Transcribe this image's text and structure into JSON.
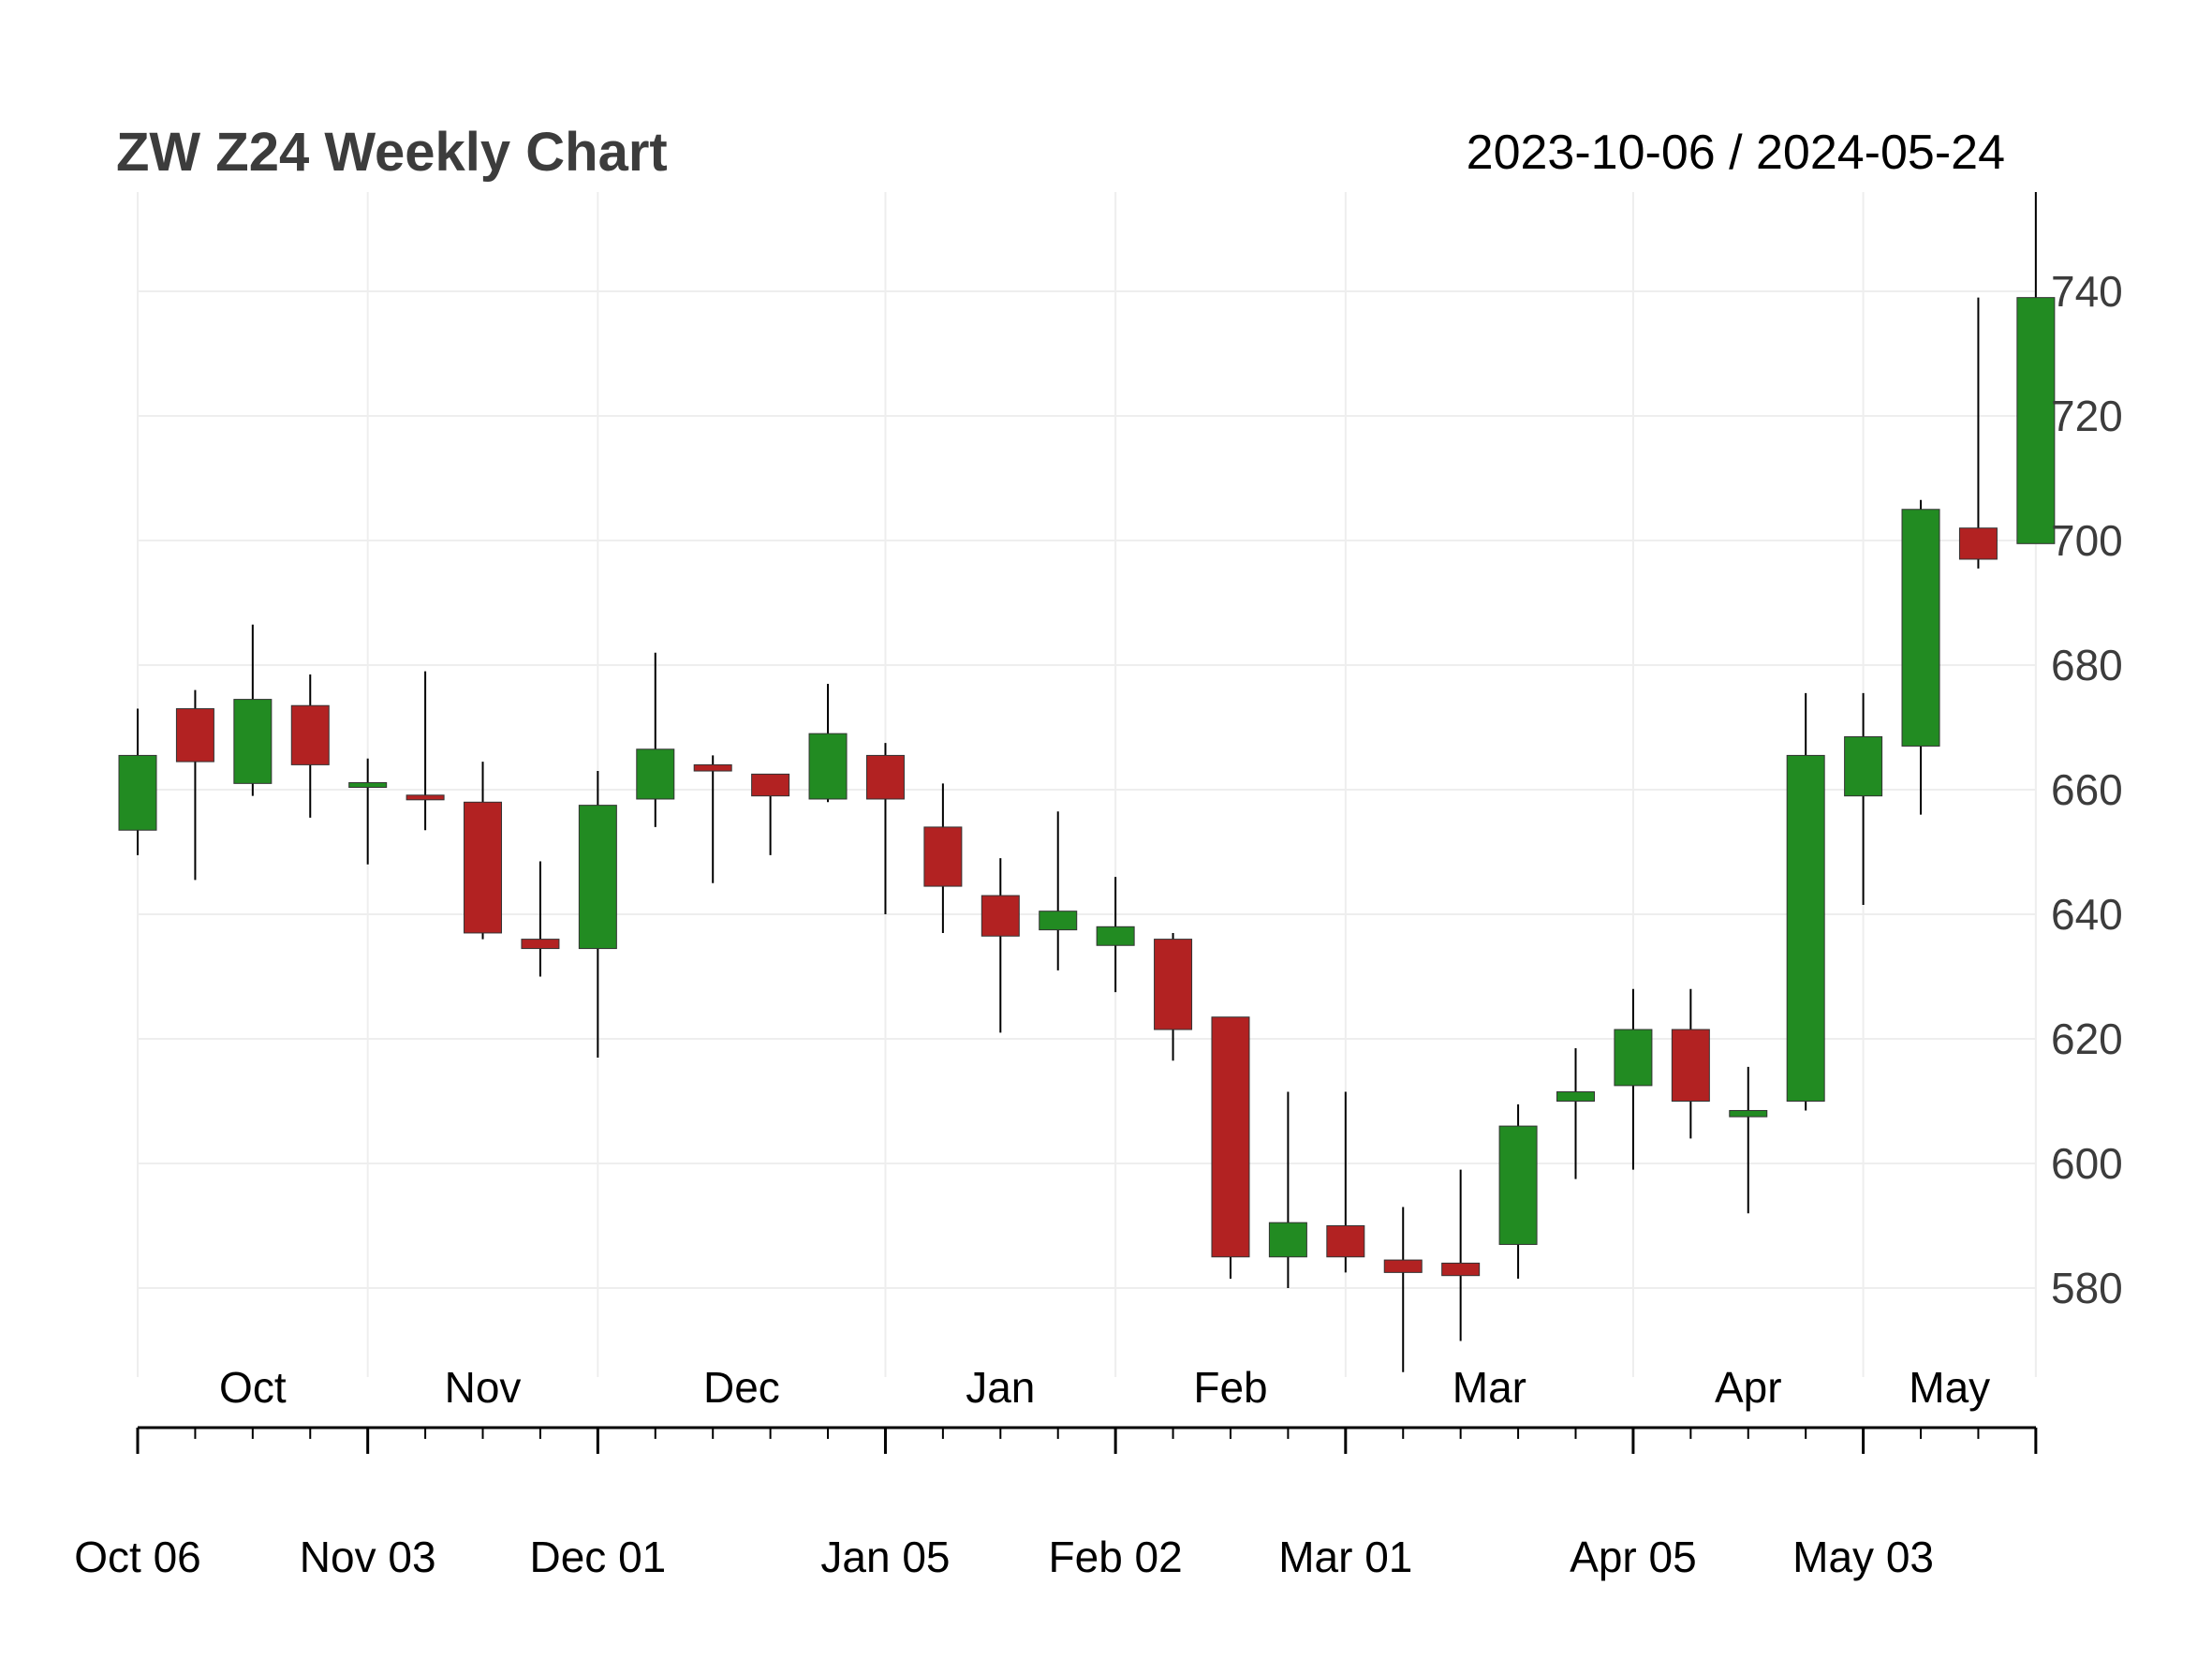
{
  "chart_data": {
    "type": "candlestick",
    "title": "ZW Z24 Weekly Chart",
    "date_range": "2023-10-06 / 2024-05-24",
    "colors": {
      "up": "#228b22",
      "down": "#b22222",
      "wick": "#000000",
      "grid": "#eeeeee"
    },
    "ylim": [
      566,
      756
    ],
    "y_ticks": [
      580,
      600,
      620,
      640,
      660,
      680,
      700,
      720,
      740
    ],
    "month_labels": [
      {
        "label": "Oct",
        "at": 2.0
      },
      {
        "label": "Nov",
        "at": 6.0
      },
      {
        "label": "Dec",
        "at": 10.5
      },
      {
        "label": "Jan",
        "at": 15.0
      },
      {
        "label": "Feb",
        "at": 19.0
      },
      {
        "label": "Mar",
        "at": 23.5
      },
      {
        "label": "Apr",
        "at": 28.0
      },
      {
        "label": "May",
        "at": 31.5
      }
    ],
    "x_ticks": [
      {
        "label": "Oct 06",
        "index": 0
      },
      {
        "label": "Nov 03",
        "index": 4
      },
      {
        "label": "Dec 01",
        "index": 8
      },
      {
        "label": "Jan 05",
        "index": 13
      },
      {
        "label": "Feb 02",
        "index": 17
      },
      {
        "label": "Mar 01",
        "index": 21
      },
      {
        "label": "Apr 05",
        "index": 26
      },
      {
        "label": "May 03",
        "index": 30
      },
      {
        "label": "",
        "index": 33
      }
    ],
    "candles": [
      {
        "date": "2023-10-06",
        "open": 653.5,
        "high": 673.0,
        "low": 649.5,
        "close": 665.5
      },
      {
        "date": "2023-10-13",
        "open": 673.0,
        "high": 676.0,
        "low": 645.5,
        "close": 664.5
      },
      {
        "date": "2023-10-20",
        "open": 661.0,
        "high": 686.5,
        "low": 659.0,
        "close": 674.5
      },
      {
        "date": "2023-10-27",
        "open": 673.5,
        "high": 678.5,
        "low": 655.5,
        "close": 664.0
      },
      {
        "date": "2023-11-03",
        "open": 660.5,
        "high": 665.0,
        "low": 648.0,
        "close": 661.0
      },
      {
        "date": "2023-11-10",
        "open": 659.0,
        "high": 679.0,
        "low": 653.5,
        "close": 658.5
      },
      {
        "date": "2023-11-17",
        "open": 658.0,
        "high": 664.5,
        "low": 636.0,
        "close": 637.0
      },
      {
        "date": "2023-11-24",
        "open": 636.0,
        "high": 648.5,
        "low": 630.0,
        "close": 634.5
      },
      {
        "date": "2023-12-01",
        "open": 634.5,
        "high": 663.0,
        "low": 617.0,
        "close": 657.5
      },
      {
        "date": "2023-12-08",
        "open": 658.5,
        "high": 682.0,
        "low": 654.0,
        "close": 666.5
      },
      {
        "date": "2023-12-15",
        "open": 664.0,
        "high": 665.5,
        "low": 645.0,
        "close": 663.0
      },
      {
        "date": "2023-12-22",
        "open": 662.5,
        "high": 662.5,
        "low": 649.5,
        "close": 659.0
      },
      {
        "date": "2023-12-29",
        "open": 658.5,
        "high": 677.0,
        "low": 658.0,
        "close": 669.0
      },
      {
        "date": "2024-01-05",
        "open": 665.5,
        "high": 667.5,
        "low": 640.0,
        "close": 658.5
      },
      {
        "date": "2024-01-12",
        "open": 654.0,
        "high": 661.0,
        "low": 637.0,
        "close": 644.5
      },
      {
        "date": "2024-01-19",
        "open": 643.0,
        "high": 649.0,
        "low": 621.0,
        "close": 636.5
      },
      {
        "date": "2024-01-26",
        "open": 637.5,
        "high": 656.5,
        "low": 631.0,
        "close": 640.5
      },
      {
        "date": "2024-02-02",
        "open": 635.0,
        "high": 646.0,
        "low": 627.5,
        "close": 638.0
      },
      {
        "date": "2024-02-09",
        "open": 636.0,
        "high": 637.0,
        "low": 616.5,
        "close": 621.5
      },
      {
        "date": "2024-02-16",
        "open": 623.5,
        "high": 623.5,
        "low": 581.5,
        "close": 585.0
      },
      {
        "date": "2024-02-23",
        "open": 585.0,
        "high": 611.5,
        "low": 580.0,
        "close": 590.5
      },
      {
        "date": "2024-03-01",
        "open": 590.0,
        "high": 611.5,
        "low": 582.5,
        "close": 585.0
      },
      {
        "date": "2024-03-08",
        "open": 584.5,
        "high": 593.0,
        "low": 566.5,
        "close": 582.5
      },
      {
        "date": "2024-03-15",
        "open": 584.0,
        "high": 599.0,
        "low": 571.5,
        "close": 582.0
      },
      {
        "date": "2024-03-22",
        "open": 587.0,
        "high": 609.5,
        "low": 581.5,
        "close": 606.0
      },
      {
        "date": "2024-03-29",
        "open": 610.0,
        "high": 618.5,
        "low": 597.5,
        "close": 611.5
      },
      {
        "date": "2024-04-05",
        "open": 612.5,
        "high": 628.0,
        "low": 599.0,
        "close": 621.5
      },
      {
        "date": "2024-04-12",
        "open": 621.5,
        "high": 628.0,
        "low": 604.0,
        "close": 610.0
      },
      {
        "date": "2024-04-19",
        "open": 607.5,
        "high": 615.5,
        "low": 592.0,
        "close": 608.5
      },
      {
        "date": "2024-04-26",
        "open": 610.0,
        "high": 675.5,
        "low": 608.5,
        "close": 665.5
      },
      {
        "date": "2024-05-03",
        "open": 659.0,
        "high": 675.5,
        "low": 641.5,
        "close": 668.5
      },
      {
        "date": "2024-05-10",
        "open": 667.0,
        "high": 706.5,
        "low": 656.0,
        "close": 705.0
      },
      {
        "date": "2024-05-17",
        "open": 702.0,
        "high": 739.0,
        "low": 695.5,
        "close": 697.0
      },
      {
        "date": "2024-05-24",
        "open": 699.5,
        "high": 756.0,
        "low": 699.5,
        "close": 739.0
      }
    ]
  }
}
